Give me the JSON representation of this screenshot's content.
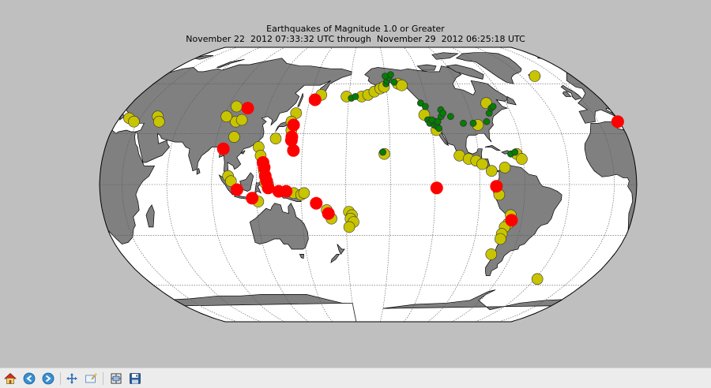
{
  "window": {
    "title_line1": "Earthquakes of Magnitude 1.0 or Greater",
    "title_line2": "November 22  2012 07:33:32 UTC through  November 29  2012 06:25:18 UTC"
  },
  "colors": {
    "background": "#bfbfbf",
    "ocean": "#ffffff",
    "land": "#808080",
    "graticule": "#555555",
    "small_quake": "#008000",
    "medium_quake": "#c8c400",
    "large_quake": "#ff0000"
  },
  "toolbar": {
    "home": "home-icon",
    "back": "back-arrow-icon",
    "forward": "forward-arrow-icon",
    "pan": "pan-arrows-icon",
    "zoom": "zoom-rectangle-icon",
    "subplots": "configure-subplots-icon",
    "save": "save-floppy-icon"
  },
  "chart_data": {
    "type": "scatter",
    "projection": "robinson",
    "center_longitude": -165,
    "grid": true,
    "title": "Earthquakes of Magnitude 1.0 or Greater",
    "subtitle": "November 22  2012 07:33:32 UTC through  November 29  2012 06:25:18 UTC",
    "marker_classes": [
      {
        "color": "#008000",
        "class": "small"
      },
      {
        "color": "#c8c400",
        "class": "medium"
      },
      {
        "color": "#ff0000",
        "class": "large"
      }
    ],
    "events": [
      {
        "lon": 105,
        "lat": 45,
        "class": "large"
      },
      {
        "lon": 100,
        "lat": 37,
        "class": "medium"
      },
      {
        "lon": 96,
        "lat": 46,
        "class": "medium"
      },
      {
        "lon": 92,
        "lat": 40,
        "class": "medium"
      },
      {
        "lon": 104,
        "lat": 38,
        "class": "medium"
      },
      {
        "lon": 102,
        "lat": 28,
        "class": "medium"
      },
      {
        "lon": 96,
        "lat": 21,
        "class": "large"
      },
      {
        "lon": 101,
        "lat": 5,
        "class": "medium"
      },
      {
        "lon": 103,
        "lat": 2,
        "class": "medium"
      },
      {
        "lon": 107,
        "lat": -3,
        "class": "large"
      },
      {
        "lon": 117,
        "lat": -8,
        "class": "large"
      },
      {
        "lon": 121,
        "lat": -10,
        "class": "medium"
      },
      {
        "lon": 120,
        "lat": 22,
        "class": "medium"
      },
      {
        "lon": 122,
        "lat": 17,
        "class": "medium"
      },
      {
        "lon": 124,
        "lat": 13,
        "class": "large"
      },
      {
        "lon": 125,
        "lat": 10,
        "class": "large"
      },
      {
        "lon": 125,
        "lat": 8,
        "class": "medium"
      },
      {
        "lon": 126,
        "lat": 5,
        "class": "large"
      },
      {
        "lon": 127,
        "lat": 2,
        "class": "large"
      },
      {
        "lon": 126,
        "lat": 1,
        "class": "medium"
      },
      {
        "lon": 128,
        "lat": 0,
        "class": "medium"
      },
      {
        "lon": 128,
        "lat": -2,
        "class": "large"
      },
      {
        "lon": 131,
        "lat": 27,
        "class": "medium"
      },
      {
        "lon": 142,
        "lat": 42,
        "class": "medium"
      },
      {
        "lon": 140,
        "lat": 37,
        "class": "medium"
      },
      {
        "lon": 142,
        "lat": 35,
        "class": "large"
      },
      {
        "lon": 141,
        "lat": 32,
        "class": "medium"
      },
      {
        "lon": 142,
        "lat": 28,
        "class": "large"
      },
      {
        "lon": 142,
        "lat": 26,
        "class": "large"
      },
      {
        "lon": 144,
        "lat": 20,
        "class": "large"
      },
      {
        "lon": 135,
        "lat": -4,
        "class": "large"
      },
      {
        "lon": 140,
        "lat": -4,
        "class": "large"
      },
      {
        "lon": 145,
        "lat": -5,
        "class": "medium"
      },
      {
        "lon": 150,
        "lat": -6,
        "class": "medium"
      },
      {
        "lon": 152,
        "lat": -5,
        "class": "medium"
      },
      {
        "lon": 154,
        "lat": 50,
        "class": "large"
      },
      {
        "lon": 158,
        "lat": 53,
        "class": "medium"
      },
      {
        "lon": 160,
        "lat": -11,
        "class": "large"
      },
      {
        "lon": 167,
        "lat": -15,
        "class": "medium"
      },
      {
        "lon": 168,
        "lat": -17,
        "class": "large"
      },
      {
        "lon": 170,
        "lat": -20,
        "class": "medium"
      },
      {
        "lon": -178,
        "lat": -16,
        "class": "medium"
      },
      {
        "lon": -176,
        "lat": -18,
        "class": "medium"
      },
      {
        "lon": -177,
        "lat": -20,
        "class": "medium"
      },
      {
        "lon": -175,
        "lat": -22,
        "class": "medium"
      },
      {
        "lon": -178,
        "lat": -25,
        "class": "medium"
      },
      {
        "lon": 178,
        "lat": 52,
        "class": "medium"
      },
      {
        "lon": -178,
        "lat": 51,
        "class": "small"
      },
      {
        "lon": -175,
        "lat": 52,
        "class": "small"
      },
      {
        "lon": -170,
        "lat": 52,
        "class": "medium"
      },
      {
        "lon": -165,
        "lat": 53,
        "class": "medium"
      },
      {
        "lon": -160,
        "lat": 55,
        "class": "medium"
      },
      {
        "lon": -155,
        "lat": 57,
        "class": "medium"
      },
      {
        "lon": -152,
        "lat": 58,
        "class": "medium"
      },
      {
        "lon": -150,
        "lat": 60,
        "class": "small"
      },
      {
        "lon": -149,
        "lat": 62,
        "class": "small"
      },
      {
        "lon": -147,
        "lat": 64,
        "class": "small"
      },
      {
        "lon": -145,
        "lat": 66,
        "class": "small"
      },
      {
        "lon": -150,
        "lat": 65,
        "class": "small"
      },
      {
        "lon": -143,
        "lat": 61,
        "class": "small"
      },
      {
        "lon": -140,
        "lat": 60,
        "class": "medium"
      },
      {
        "lon": -137,
        "lat": 59,
        "class": "medium"
      },
      {
        "lon": -125,
        "lat": 48,
        "class": "small"
      },
      {
        "lon": -122,
        "lat": 46,
        "class": "small"
      },
      {
        "lon": -124,
        "lat": 41,
        "class": "medium"
      },
      {
        "lon": -122,
        "lat": 38,
        "class": "small"
      },
      {
        "lon": -121,
        "lat": 36,
        "class": "small"
      },
      {
        "lon": -118,
        "lat": 35,
        "class": "small"
      },
      {
        "lon": -116,
        "lat": 34,
        "class": "small"
      },
      {
        "lon": -115,
        "lat": 33,
        "class": "small"
      },
      {
        "lon": -117,
        "lat": 37,
        "class": "small"
      },
      {
        "lon": -119,
        "lat": 38,
        "class": "small"
      },
      {
        "lon": -115,
        "lat": 37,
        "class": "small"
      },
      {
        "lon": -117,
        "lat": 32,
        "class": "medium"
      },
      {
        "lon": -112,
        "lat": 40,
        "class": "small"
      },
      {
        "lon": -111,
        "lat": 44,
        "class": "small"
      },
      {
        "lon": -110,
        "lat": 42,
        "class": "small"
      },
      {
        "lon": -105,
        "lat": 40,
        "class": "small"
      },
      {
        "lon": -97,
        "lat": 36,
        "class": "small"
      },
      {
        "lon": -90,
        "lat": 36,
        "class": "small"
      },
      {
        "lon": -87,
        "lat": 35,
        "class": "medium"
      },
      {
        "lon": -80,
        "lat": 37,
        "class": "small"
      },
      {
        "lon": -76,
        "lat": 42,
        "class": "small"
      },
      {
        "lon": -73,
        "lat": 45,
        "class": "small"
      },
      {
        "lon": -71,
        "lat": 46,
        "class": "small"
      },
      {
        "lon": -75,
        "lat": 48,
        "class": "medium"
      },
      {
        "lon": -155,
        "lat": 19,
        "class": "small"
      },
      {
        "lon": -154,
        "lat": 18,
        "class": "medium"
      },
      {
        "lon": -103,
        "lat": 17,
        "class": "medium"
      },
      {
        "lon": -97,
        "lat": 15,
        "class": "medium"
      },
      {
        "lon": -92,
        "lat": 14,
        "class": "medium"
      },
      {
        "lon": -88,
        "lat": 12,
        "class": "medium"
      },
      {
        "lon": -82,
        "lat": 8,
        "class": "medium"
      },
      {
        "lon": -73,
        "lat": 10,
        "class": "medium"
      },
      {
        "lon": -68,
        "lat": 18,
        "class": "small"
      },
      {
        "lon": -65,
        "lat": 19,
        "class": "small"
      },
      {
        "lon": -64,
        "lat": 18,
        "class": "medium"
      },
      {
        "lon": -61,
        "lat": 15,
        "class": "medium"
      },
      {
        "lon": -79,
        "lat": -1,
        "class": "large"
      },
      {
        "lon": -119,
        "lat": -2,
        "class": "large"
      },
      {
        "lon": -77,
        "lat": -6,
        "class": "medium"
      },
      {
        "lon": -68,
        "lat": -18,
        "class": "medium"
      },
      {
        "lon": -67,
        "lat": -21,
        "class": "large"
      },
      {
        "lon": -69,
        "lat": -23,
        "class": "medium"
      },
      {
        "lon": -71,
        "lat": -25,
        "class": "medium"
      },
      {
        "lon": -72,
        "lat": -29,
        "class": "medium"
      },
      {
        "lon": -72,
        "lat": -32,
        "class": "medium"
      },
      {
        "lon": -75,
        "lat": -41,
        "class": "medium"
      },
      {
        "lon": -28,
        "lat": -56,
        "class": "medium"
      },
      {
        "lon": -18,
        "lat": 65,
        "class": "medium"
      },
      {
        "lon": 14,
        "lat": 37,
        "class": "large"
      },
      {
        "lon": 22,
        "lat": 39,
        "class": "medium"
      },
      {
        "lon": 27,
        "lat": 37,
        "class": "medium"
      },
      {
        "lon": 42,
        "lat": 40,
        "class": "medium"
      },
      {
        "lon": 45,
        "lat": 37,
        "class": "medium"
      }
    ]
  }
}
